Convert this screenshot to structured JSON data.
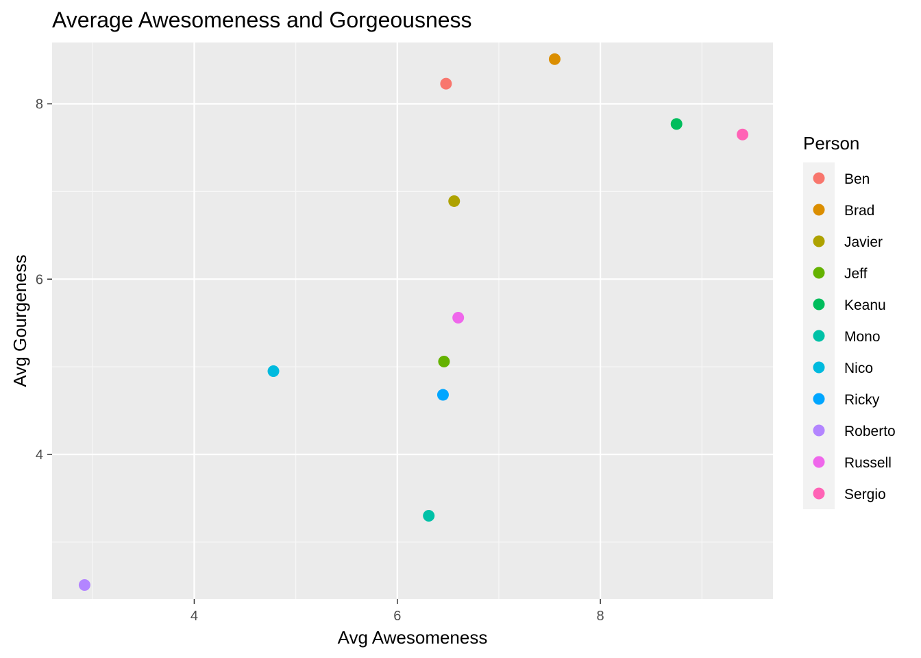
{
  "chart_data": {
    "type": "scatter",
    "title": "Average Awesomeness and Gorgeousness",
    "xlabel": "Avg Awesomeness",
    "ylabel": "Avg Gourgeness",
    "xlim": [
      2.6,
      9.7
    ],
    "ylim": [
      2.35,
      8.7
    ],
    "x_ticks": [
      4,
      6,
      8
    ],
    "y_ticks": [
      4,
      6,
      8
    ],
    "x_tick_labels": [
      "4",
      "6",
      "8"
    ],
    "y_tick_labels": [
      "4",
      "6",
      "8"
    ],
    "x_minor_ticks": [
      3,
      5,
      7,
      9
    ],
    "y_minor_ticks": [
      3,
      5,
      7
    ],
    "grid": true,
    "legend_title": "Person",
    "legend_position": "right",
    "points": [
      {
        "name": "Ben",
        "x": 6.48,
        "y": 8.23,
        "color": "#F8766D"
      },
      {
        "name": "Brad",
        "x": 7.55,
        "y": 8.51,
        "color": "#DB8E00"
      },
      {
        "name": "Javier",
        "x": 6.56,
        "y": 6.89,
        "color": "#AEA200"
      },
      {
        "name": "Jeff",
        "x": 6.46,
        "y": 5.06,
        "color": "#64B200"
      },
      {
        "name": "Keanu",
        "x": 8.75,
        "y": 7.77,
        "color": "#00BD5C"
      },
      {
        "name": "Mono",
        "x": 6.31,
        "y": 3.3,
        "color": "#00C1A7"
      },
      {
        "name": "Nico",
        "x": 4.78,
        "y": 4.95,
        "color": "#00BADE"
      },
      {
        "name": "Ricky",
        "x": 6.45,
        "y": 4.68,
        "color": "#00A6FF"
      },
      {
        "name": "Roberto",
        "x": 2.92,
        "y": 2.51,
        "color": "#B385FF"
      },
      {
        "name": "Russell",
        "x": 6.6,
        "y": 5.56,
        "color": "#EF67EB"
      },
      {
        "name": "Sergio",
        "x": 9.4,
        "y": 7.65,
        "color": "#FF63B6"
      }
    ],
    "colors": {
      "panel_background": "#EBEBEB",
      "grid_major": "#FFFFFF",
      "grid_minor": "#F7F7F7",
      "tick_mark": "#333333",
      "tick_text": "#4D4D4D",
      "legend_key_background": "#F2F2F2"
    }
  }
}
